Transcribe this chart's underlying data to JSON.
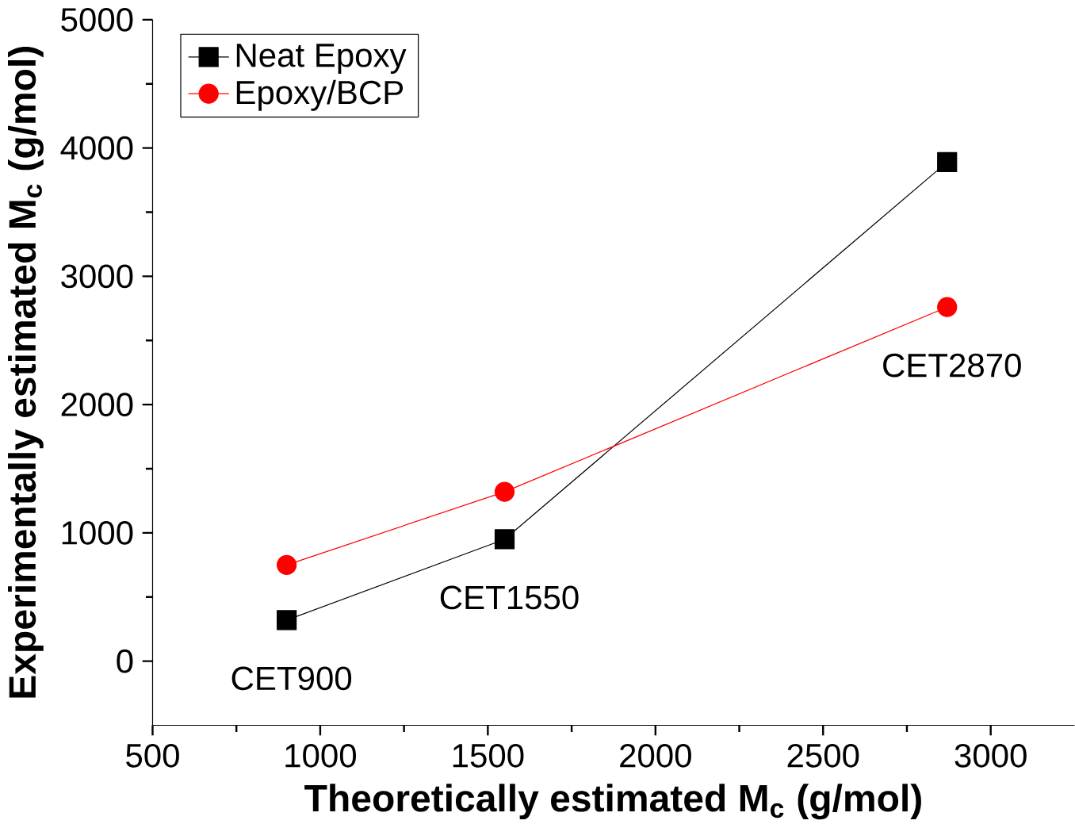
{
  "chart_data": {
    "type": "line",
    "xlabel": "Theoretically estimated M$_{c}$ (g/mol)",
    "ylabel": "Experimentally estimated M$_{c}$ (g/mol)",
    "x": [
      900,
      1550,
      2870
    ],
    "series": [
      {
        "name": "Neat Epoxy",
        "color": "#000000",
        "marker": "square",
        "values": [
          320,
          950,
          3890
        ]
      },
      {
        "name": "Epoxy/BCP",
        "color": "#ff0000",
        "marker": "circle",
        "values": [
          750,
          1320,
          2760
        ]
      }
    ],
    "xlim": [
      500,
      3250
    ],
    "ylim": [
      -500,
      5000
    ],
    "xticks": [
      500,
      1000,
      1500,
      2000,
      2500,
      3000
    ],
    "yticks": [
      0,
      1000,
      2000,
      3000,
      4000,
      5000
    ],
    "legend": "top left",
    "grid": false,
    "annotations": [
      "CET900",
      "CET1550",
      "CET2870"
    ]
  }
}
